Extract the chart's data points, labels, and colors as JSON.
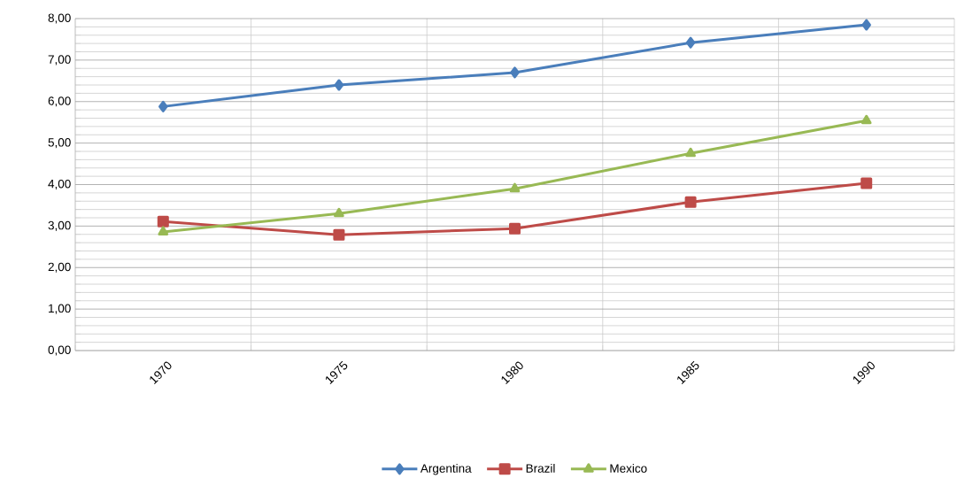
{
  "chart_data": {
    "type": "line",
    "categories": [
      "1970",
      "1975",
      "1980",
      "1985",
      "1990"
    ],
    "series": [
      {
        "name": "Argentina",
        "color": "#4a7ebb",
        "marker": "diamond",
        "values": [
          5.88,
          6.4,
          6.7,
          7.42,
          7.85
        ]
      },
      {
        "name": "Brazil",
        "color": "#be4b48",
        "marker": "square",
        "values": [
          3.11,
          2.79,
          2.94,
          3.58,
          4.03
        ]
      },
      {
        "name": "Mexico",
        "color": "#98b954",
        "marker": "triangle",
        "values": [
          2.86,
          3.3,
          3.9,
          4.75,
          5.54
        ]
      }
    ],
    "ylim": [
      0,
      8
    ],
    "yticks": [
      {
        "value": 0,
        "label": "0,00"
      },
      {
        "value": 1,
        "label": "1,00"
      },
      {
        "value": 2,
        "label": "2,00"
      },
      {
        "value": 3,
        "label": "3,00"
      },
      {
        "value": 4,
        "label": "4,00"
      },
      {
        "value": 5,
        "label": "5,00"
      },
      {
        "value": 6,
        "label": "6,00"
      },
      {
        "value": 7,
        "label": "7,00"
      },
      {
        "value": 8,
        "label": "8,00"
      }
    ],
    "grid": true,
    "legend": "bottom",
    "line_style": "solid"
  }
}
